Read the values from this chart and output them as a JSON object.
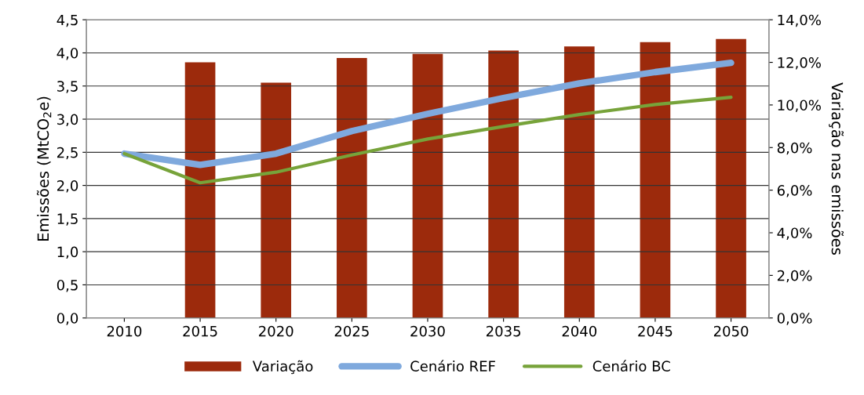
{
  "chart_data": {
    "type": "bar",
    "ylabel": "Emissões (MtCO$_{2}$e)",
    "y2label": "Variação nas emissões",
    "categories": [
      "2010",
      "2015",
      "2020",
      "2025",
      "2030",
      "2035",
      "2040",
      "2045",
      "2050"
    ],
    "series": [
      {
        "name": "Variação",
        "axis": "y2",
        "color": "#9c2a0c",
        "values": [
          null,
          12.0,
          11.05,
          12.2,
          12.4,
          12.55,
          12.75,
          12.95,
          13.1
        ]
      },
      {
        "name": "Cenário REF",
        "type": "line",
        "color": "#7fa9dd",
        "values": [
          2.48,
          2.31,
          2.48,
          2.82,
          3.08,
          3.32,
          3.54,
          3.71,
          3.85
        ]
      },
      {
        "name": "Cenário BC",
        "type": "line",
        "color": "#77a33a",
        "values": [
          2.48,
          2.04,
          2.2,
          2.46,
          2.7,
          2.89,
          3.07,
          3.22,
          3.33
        ]
      }
    ],
    "ylim": [
      0,
      4.5
    ],
    "yticks": [
      {
        "value": 0,
        "label": "0,0"
      },
      {
        "value": 0.5,
        "label": "0,5"
      },
      {
        "value": 1,
        "label": "1,0"
      },
      {
        "value": 1.5,
        "label": "1,5"
      },
      {
        "value": 2,
        "label": "2,0"
      },
      {
        "value": 2.5,
        "label": "2,5"
      },
      {
        "value": 3,
        "label": "3,0"
      },
      {
        "value": 3.5,
        "label": "3,5"
      },
      {
        "value": 4,
        "label": "4,0"
      },
      {
        "value": 4.5,
        "label": "4,5"
      }
    ],
    "y2lim": [
      0,
      14
    ],
    "y2ticks": [
      {
        "value": 0,
        "label": "0,0%"
      },
      {
        "value": 2,
        "label": "2,0%"
      },
      {
        "value": 4,
        "label": "4,0%"
      },
      {
        "value": 6,
        "label": "6,0%"
      },
      {
        "value": 8,
        "label": "8,0%"
      },
      {
        "value": 10,
        "label": "10,0%"
      },
      {
        "value": 12,
        "label": "12,0%"
      },
      {
        "value": 14,
        "label": "14,0%"
      }
    ],
    "grid": "y",
    "legend": "bottom",
    "marker": "none",
    "line_style": "solid"
  }
}
